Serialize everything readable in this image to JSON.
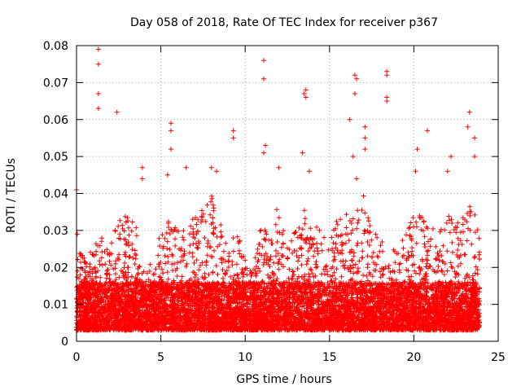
{
  "chart_data": {
    "type": "scatter",
    "title": "Day 058 of 2018, Rate Of TEC Index for receiver p367",
    "xlabel": "GPS time / hours",
    "ylabel": "ROTI / TECUs",
    "xlim": [
      0,
      25
    ],
    "ylim": [
      0,
      0.08
    ],
    "grid": true,
    "marker": "+",
    "xticks": [
      0,
      5,
      10,
      15,
      20,
      25
    ],
    "xtick_labels": [
      "0",
      "5",
      "10",
      "15",
      "20",
      "25"
    ],
    "yticks": [
      0,
      0.01,
      0.02,
      0.03,
      0.04,
      0.05,
      0.06,
      0.07,
      0.08
    ],
    "ytick_labels": [
      "0",
      "0.01",
      "0.02",
      "0.03",
      "0.04",
      "0.05",
      "0.06",
      "0.07",
      "0.08"
    ],
    "series": [
      {
        "name": "ROTI",
        "color": "#ff0000",
        "description": "dense ROTI values for all satellites, baseline ~0.005-0.015 TECU/min, bursts to ~0.03-0.05",
        "x_range": [
          0,
          23.9
        ],
        "y_baseline": [
          0.003,
          0.016
        ],
        "y_bursts": [
          0.02,
          0.05
        ],
        "notable_points": [
          {
            "x": 0.0,
            "y": 0.041
          },
          {
            "x": 0.05,
            "y": 0.029
          },
          {
            "x": 1.3,
            "y": 0.079
          },
          {
            "x": 1.3,
            "y": 0.075
          },
          {
            "x": 1.3,
            "y": 0.067
          },
          {
            "x": 1.3,
            "y": 0.063
          },
          {
            "x": 2.4,
            "y": 0.062
          },
          {
            "x": 3.9,
            "y": 0.047
          },
          {
            "x": 3.9,
            "y": 0.044
          },
          {
            "x": 5.6,
            "y": 0.059
          },
          {
            "x": 5.6,
            "y": 0.057
          },
          {
            "x": 5.6,
            "y": 0.052
          },
          {
            "x": 5.4,
            "y": 0.045
          },
          {
            "x": 6.5,
            "y": 0.047
          },
          {
            "x": 8.0,
            "y": 0.047
          },
          {
            "x": 8.3,
            "y": 0.046
          },
          {
            "x": 9.3,
            "y": 0.057
          },
          {
            "x": 9.3,
            "y": 0.055
          },
          {
            "x": 11.1,
            "y": 0.076
          },
          {
            "x": 11.1,
            "y": 0.071
          },
          {
            "x": 11.2,
            "y": 0.053
          },
          {
            "x": 11.1,
            "y": 0.051
          },
          {
            "x": 12.0,
            "y": 0.047
          },
          {
            "x": 13.5,
            "y": 0.067
          },
          {
            "x": 13.6,
            "y": 0.068
          },
          {
            "x": 13.6,
            "y": 0.066
          },
          {
            "x": 13.4,
            "y": 0.051
          },
          {
            "x": 13.8,
            "y": 0.046
          },
          {
            "x": 16.5,
            "y": 0.072
          },
          {
            "x": 16.6,
            "y": 0.071
          },
          {
            "x": 16.5,
            "y": 0.067
          },
          {
            "x": 16.2,
            "y": 0.06
          },
          {
            "x": 16.4,
            "y": 0.05
          },
          {
            "x": 16.6,
            "y": 0.044
          },
          {
            "x": 17.1,
            "y": 0.058
          },
          {
            "x": 17.1,
            "y": 0.055
          },
          {
            "x": 17.1,
            "y": 0.052
          },
          {
            "x": 18.4,
            "y": 0.073
          },
          {
            "x": 18.4,
            "y": 0.072
          },
          {
            "x": 18.4,
            "y": 0.066
          },
          {
            "x": 18.4,
            "y": 0.065
          },
          {
            "x": 20.2,
            "y": 0.052
          },
          {
            "x": 20.1,
            "y": 0.046
          },
          {
            "x": 20.8,
            "y": 0.057
          },
          {
            "x": 22.2,
            "y": 0.05
          },
          {
            "x": 22.0,
            "y": 0.046
          },
          {
            "x": 23.3,
            "y": 0.062
          },
          {
            "x": 23.2,
            "y": 0.058
          },
          {
            "x": 23.6,
            "y": 0.055
          },
          {
            "x": 23.6,
            "y": 0.05
          }
        ],
        "activity_envelope": [
          {
            "x": 0.0,
            "y": 0.03
          },
          {
            "x": 0.5,
            "y": 0.022
          },
          {
            "x": 1.0,
            "y": 0.026
          },
          {
            "x": 1.5,
            "y": 0.028
          },
          {
            "x": 2.0,
            "y": 0.026
          },
          {
            "x": 2.5,
            "y": 0.033
          },
          {
            "x": 3.0,
            "y": 0.034
          },
          {
            "x": 3.5,
            "y": 0.033
          },
          {
            "x": 4.0,
            "y": 0.02
          },
          {
            "x": 4.5,
            "y": 0.022
          },
          {
            "x": 5.0,
            "y": 0.03
          },
          {
            "x": 5.5,
            "y": 0.034
          },
          {
            "x": 6.0,
            "y": 0.03
          },
          {
            "x": 6.5,
            "y": 0.032
          },
          {
            "x": 7.0,
            "y": 0.034
          },
          {
            "x": 7.5,
            "y": 0.036
          },
          {
            "x": 8.0,
            "y": 0.04
          },
          {
            "x": 8.5,
            "y": 0.033
          },
          {
            "x": 9.0,
            "y": 0.026
          },
          {
            "x": 9.5,
            "y": 0.03
          },
          {
            "x": 10.0,
            "y": 0.022
          },
          {
            "x": 10.5,
            "y": 0.02
          },
          {
            "x": 11.0,
            "y": 0.034
          },
          {
            "x": 11.5,
            "y": 0.03
          },
          {
            "x": 12.0,
            "y": 0.038
          },
          {
            "x": 12.5,
            "y": 0.03
          },
          {
            "x": 13.0,
            "y": 0.033
          },
          {
            "x": 13.5,
            "y": 0.038
          },
          {
            "x": 14.0,
            "y": 0.032
          },
          {
            "x": 14.5,
            "y": 0.03
          },
          {
            "x": 15.0,
            "y": 0.028
          },
          {
            "x": 15.5,
            "y": 0.034
          },
          {
            "x": 16.0,
            "y": 0.036
          },
          {
            "x": 16.5,
            "y": 0.034
          },
          {
            "x": 17.0,
            "y": 0.04
          },
          {
            "x": 17.5,
            "y": 0.03
          },
          {
            "x": 18.0,
            "y": 0.028
          },
          {
            "x": 18.5,
            "y": 0.026
          },
          {
            "x": 19.0,
            "y": 0.024
          },
          {
            "x": 19.5,
            "y": 0.03
          },
          {
            "x": 20.0,
            "y": 0.036
          },
          {
            "x": 20.5,
            "y": 0.034
          },
          {
            "x": 21.0,
            "y": 0.032
          },
          {
            "x": 21.5,
            "y": 0.03
          },
          {
            "x": 22.0,
            "y": 0.036
          },
          {
            "x": 22.5,
            "y": 0.032
          },
          {
            "x": 23.0,
            "y": 0.034
          },
          {
            "x": 23.5,
            "y": 0.038
          },
          {
            "x": 23.9,
            "y": 0.03
          }
        ]
      }
    ]
  }
}
